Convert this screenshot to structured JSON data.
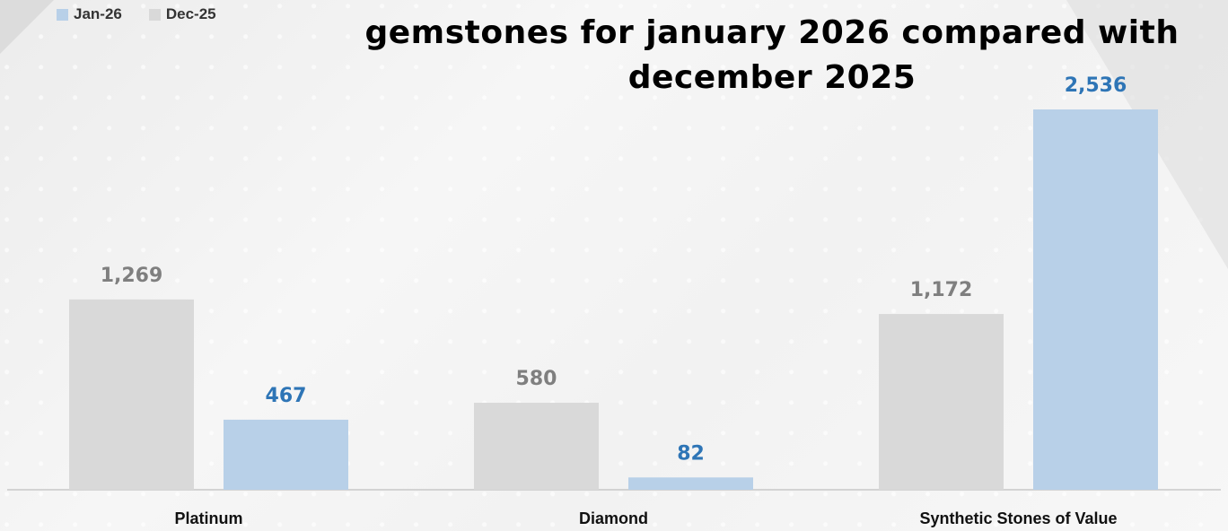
{
  "chart_data": {
    "type": "bar",
    "title": "gemstones for january 2026 compared with december 2025",
    "categories": [
      "Platinum",
      "Diamond",
      "Synthetic Stones of Value"
    ],
    "series": [
      {
        "name": "Dec-25",
        "color": "#d9d9d9",
        "label_color": "#7f7f7f",
        "values": [
          1269,
          580,
          1172
        ],
        "labels": [
          "1,269",
          "580",
          "1,172"
        ]
      },
      {
        "name": "Jan-26",
        "color": "#b8d0e8",
        "label_color": "#2e75b6",
        "values": [
          467,
          82,
          2536
        ],
        "labels": [
          "467",
          "82",
          "2,536"
        ]
      }
    ],
    "legend_order": [
      "Jan-26",
      "Dec-25"
    ],
    "legend_position": "top-left",
    "ylim": [
      0,
      2800
    ],
    "grid": false
  }
}
